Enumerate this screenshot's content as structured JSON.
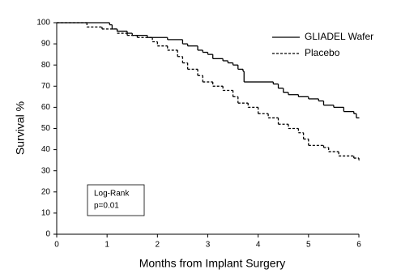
{
  "chart_data": {
    "type": "step",
    "xlabel": "Months from Implant Surgery",
    "ylabel": "Survival %",
    "xlim": [
      0,
      6
    ],
    "xticks": [
      0,
      1,
      2,
      3,
      4,
      5,
      6
    ],
    "ylim": [
      0,
      100
    ],
    "yticks": [
      0,
      10,
      20,
      30,
      40,
      50,
      60,
      70,
      80,
      90,
      100
    ],
    "grid": false,
    "legend": "upper right",
    "annotation": [
      "Log-Rank",
      "p=0.01"
    ],
    "series": [
      {
        "name": "GLIADEL Wafer",
        "color": "#000000",
        "dash": "solid",
        "x": [
          0,
          1.05,
          1.1,
          1.2,
          1.4,
          1.5,
          1.8,
          2.2,
          2.5,
          2.6,
          2.8,
          2.9,
          3.0,
          3.1,
          3.3,
          3.4,
          3.5,
          3.6,
          3.7,
          3.72,
          4.3,
          4.4,
          4.5,
          4.6,
          4.8,
          5.0,
          5.2,
          5.3,
          5.5,
          5.7,
          5.9,
          5.95,
          6.0
        ],
        "values": [
          100,
          99,
          97,
          96,
          95,
          94,
          93,
          92,
          90,
          89,
          87,
          86,
          85,
          83,
          82,
          81,
          80,
          78,
          77,
          72,
          71,
          69,
          67,
          66,
          65,
          64,
          63,
          61,
          60,
          58,
          57,
          55,
          55
        ]
      },
      {
        "name": "Placebo",
        "color": "#000000",
        "dash": "dashed",
        "x": [
          0,
          0.6,
          0.9,
          1.2,
          1.4,
          1.6,
          1.9,
          2.0,
          2.2,
          2.4,
          2.5,
          2.6,
          2.8,
          2.9,
          3.1,
          3.3,
          3.5,
          3.6,
          3.8,
          4.0,
          4.2,
          4.4,
          4.6,
          4.8,
          4.9,
          5.0,
          5.3,
          5.4,
          5.6,
          5.9,
          6.0
        ],
        "values": [
          100,
          98,
          97,
          95,
          94,
          93,
          91,
          89,
          87,
          84,
          81,
          78,
          75,
          72,
          70,
          68,
          65,
          62,
          60,
          57,
          55,
          52,
          50,
          48,
          45,
          42,
          41,
          39,
          37,
          36,
          35
        ]
      }
    ]
  }
}
